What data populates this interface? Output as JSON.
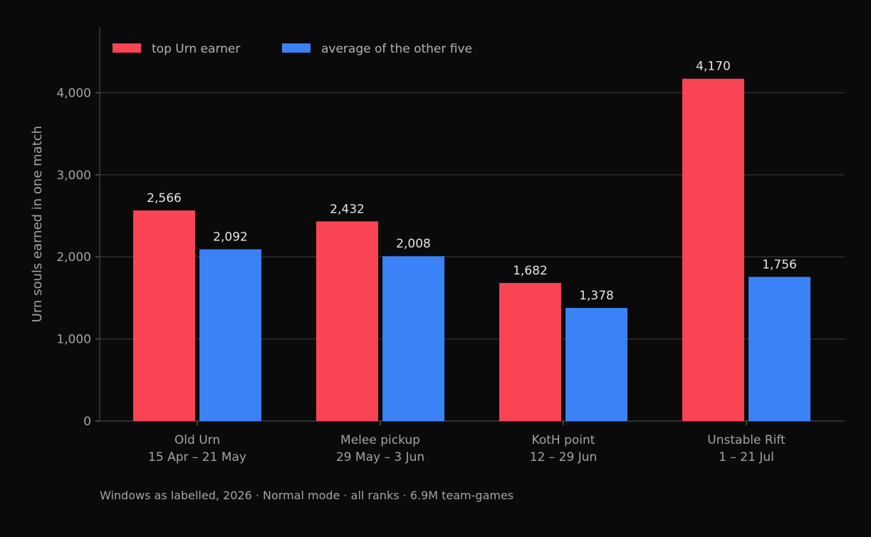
{
  "chart_data": {
    "type": "bar",
    "categories": [
      [
        "Old Urn",
        "15 Apr – 21 May"
      ],
      [
        "Melee pickup",
        "29 May – 3 Jun"
      ],
      [
        "KotH point",
        "12 – 29 Jun"
      ],
      [
        "Unstable Rift",
        "1 – 21 Jul"
      ]
    ],
    "series": [
      {
        "name": "top Urn earner",
        "color": "#f94454",
        "values": [
          2566,
          2432,
          1682,
          4170
        ],
        "labels": [
          "2,566",
          "2,432",
          "1,682",
          "4,170"
        ]
      },
      {
        "name": "average of the other five",
        "color": "#3b82f6",
        "values": [
          2092,
          2008,
          1378,
          1756
        ],
        "labels": [
          "2,092",
          "2,008",
          "1,378",
          "1,756"
        ]
      }
    ],
    "ylabel": "Urn souls earned in one match",
    "xlabel": "",
    "ylim": [
      0,
      4800
    ],
    "yticks": [
      0,
      1000,
      2000,
      3000,
      4000
    ],
    "ytick_labels": [
      "0",
      "1,000",
      "2,000",
      "3,000",
      "4,000"
    ],
    "grid": true,
    "legend": "top-left",
    "footnote": "Windows as labelled, 2026 · Normal mode · all ranks · 6.9M team-games"
  }
}
